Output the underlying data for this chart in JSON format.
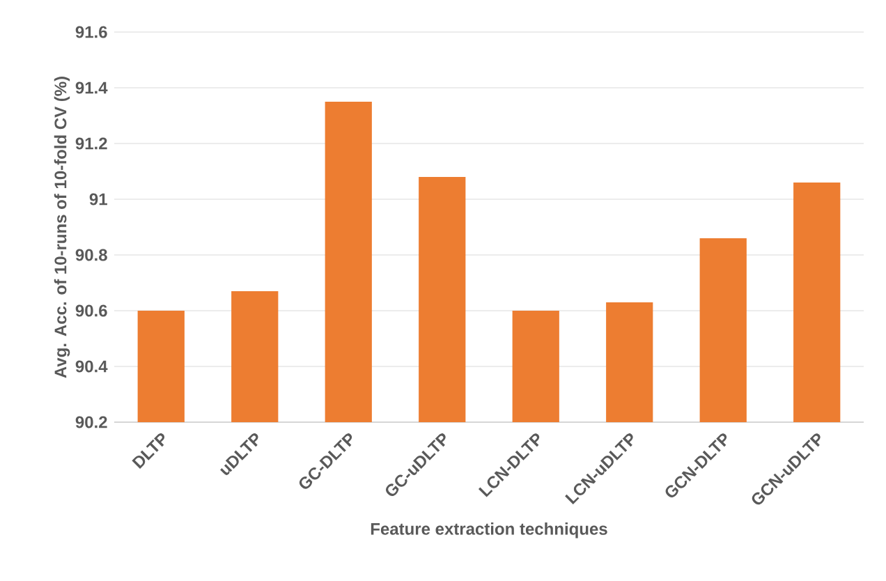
{
  "chart_data": {
    "type": "bar",
    "xlabel": "Feature extraction techniques",
    "ylabel": "Avg. Acc. of 10-runs of 10-fold CV (%)",
    "categories": [
      "DLTP",
      "uDLTP",
      "GC-DLTP",
      "GC-uDLTP",
      "LCN-DLTP",
      "LCN-uDLTP",
      "GCN-DLTP",
      "GCN-uDLTP"
    ],
    "values": [
      90.6,
      90.67,
      91.35,
      91.08,
      90.6,
      90.63,
      90.86,
      91.06
    ],
    "color": "#ed7d31",
    "ylim": [
      90.2,
      91.6
    ],
    "yticks": [
      90.2,
      90.4,
      90.6,
      90.8,
      91,
      91.2,
      91.4,
      91.6
    ],
    "grid": "y"
  }
}
